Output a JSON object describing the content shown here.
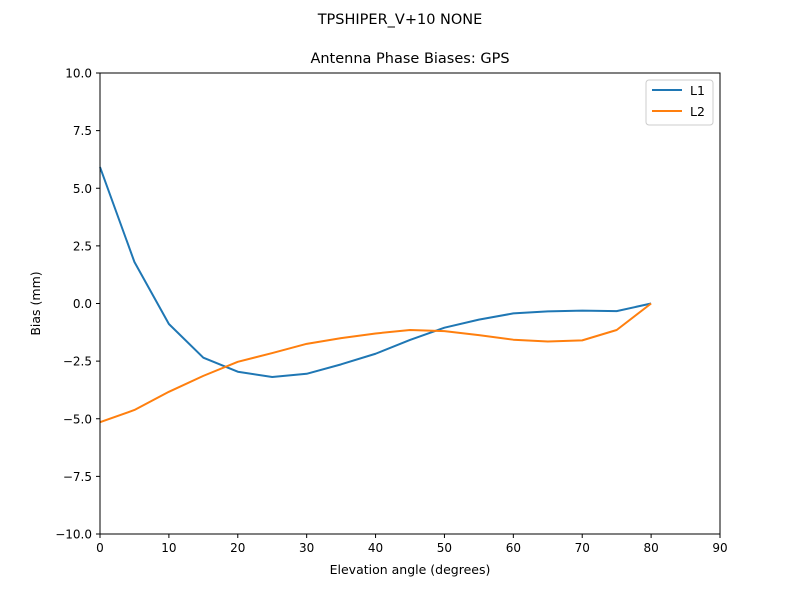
{
  "figure": {
    "suptitle": "TPSHIPER_V+10   NONE",
    "background": "#ffffff"
  },
  "chart_data": {
    "type": "line",
    "title": "Antenna Phase Biases: GPS",
    "suptitle": "TPSHIPER_V+10   NONE",
    "xlabel": "Elevation angle (degrees)",
    "ylabel": "Bias (mm)",
    "xlim": [
      0,
      90
    ],
    "ylim": [
      -10,
      10
    ],
    "xticks": [
      0,
      10,
      20,
      30,
      40,
      50,
      60,
      70,
      80,
      90
    ],
    "xtick_labels": [
      "0",
      "10",
      "20",
      "30",
      "40",
      "50",
      "60",
      "70",
      "80",
      "90"
    ],
    "yticks": [
      10,
      7.5,
      5,
      2.5,
      0,
      -2.5,
      -5,
      -7.5,
      -10
    ],
    "ytick_labels": [
      "10.0",
      "7.5",
      "5.0",
      "2.5",
      "0.0",
      "−2.5",
      "−5.0",
      "−7.5",
      "−10.0"
    ],
    "grid": false,
    "legend_position": "upper right",
    "x": [
      0,
      5,
      10,
      15,
      20,
      25,
      30,
      35,
      40,
      45,
      50,
      55,
      60,
      65,
      70,
      75,
      80
    ],
    "series": [
      {
        "name": "L1",
        "color": "#1f77b4",
        "values": [
          5.92,
          1.8,
          -0.89,
          -2.35,
          -2.96,
          -3.19,
          -3.05,
          -2.64,
          -2.18,
          -1.58,
          -1.05,
          -0.7,
          -0.43,
          -0.34,
          -0.31,
          -0.33,
          0.0
        ]
      },
      {
        "name": "L2",
        "color": "#ff7f0e",
        "values": [
          -5.15,
          -4.62,
          -3.83,
          -3.14,
          -2.53,
          -2.15,
          -1.75,
          -1.5,
          -1.3,
          -1.15,
          -1.2,
          -1.37,
          -1.57,
          -1.65,
          -1.6,
          -1.15,
          0.0
        ]
      }
    ]
  },
  "legend": {
    "items": [
      {
        "label": "L1",
        "color": "#1f77b4"
      },
      {
        "label": "L2",
        "color": "#ff7f0e"
      }
    ]
  }
}
